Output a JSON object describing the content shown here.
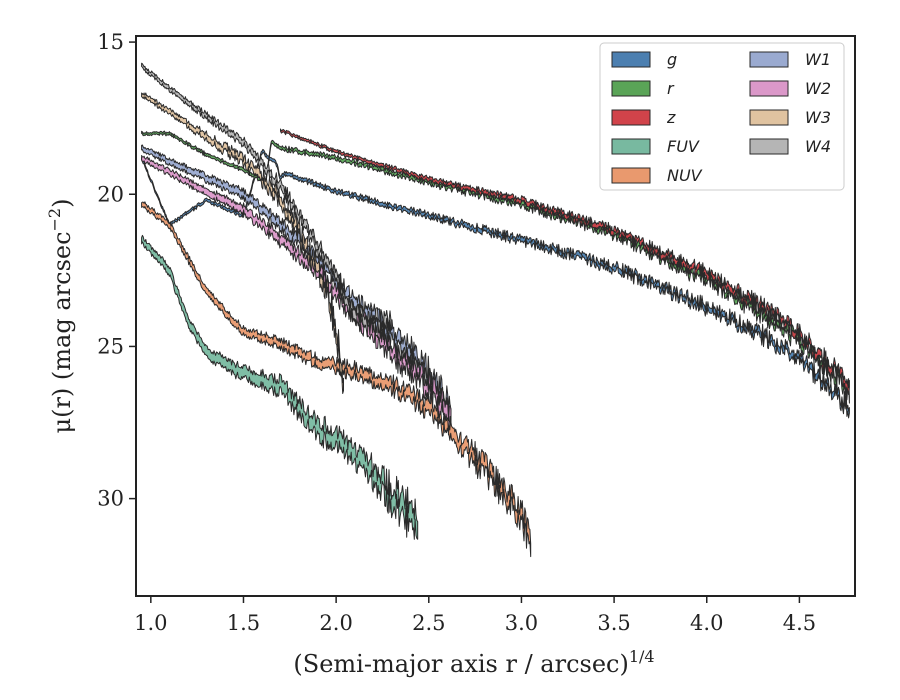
{
  "chart_data": {
    "type": "area",
    "title": "",
    "xlabel": "(Semi-major axis r / arcsec)",
    "xlabel_exponent": "1/4",
    "ylabel": "μ(r) (mag arcsec",
    "ylabel_exponent": "−2",
    "ylabel_close": ")",
    "xlim": [
      0.92,
      4.8
    ],
    "ylim": [
      33.2,
      14.8
    ],
    "y_inverted": true,
    "xticks": [
      1.0,
      1.5,
      2.0,
      2.5,
      3.0,
      3.5,
      4.0,
      4.5
    ],
    "xtick_labels": [
      "1.0",
      "1.5",
      "2.0",
      "2.5",
      "3.0",
      "3.5",
      "4.0",
      "4.5"
    ],
    "yticks": [
      15,
      20,
      25,
      30
    ],
    "ytick_labels": [
      "15",
      "20",
      "25",
      "30"
    ],
    "grid": false,
    "legend": {
      "placement": "top-right",
      "columns": 2
    },
    "series": [
      {
        "name": "g",
        "color": "#4c7fb0",
        "width": 0.12,
        "noise": 0.35,
        "points": [
          [
            0.95,
            18.8
          ],
          [
            1.1,
            21.0
          ],
          [
            1.3,
            20.2
          ],
          [
            1.5,
            20.7
          ],
          [
            1.6,
            18.6
          ],
          [
            1.68,
            19.0
          ],
          [
            1.7,
            19.5
          ],
          [
            1.72,
            19.3
          ],
          [
            2.0,
            19.9
          ],
          [
            2.5,
            20.7
          ],
          [
            3.0,
            21.5
          ],
          [
            3.5,
            22.4
          ],
          [
            4.0,
            23.7
          ],
          [
            4.3,
            24.6
          ],
          [
            4.5,
            25.4
          ],
          [
            4.77,
            27.0
          ]
        ]
      },
      {
        "name": "r",
        "color": "#5aa457",
        "width": 0.12,
        "noise": 0.35,
        "points": [
          [
            0.95,
            18.0
          ],
          [
            1.1,
            18.0
          ],
          [
            1.3,
            18.7
          ],
          [
            1.5,
            19.2
          ],
          [
            1.62,
            19.6
          ],
          [
            1.65,
            18.3
          ],
          [
            1.72,
            18.5
          ],
          [
            2.0,
            18.8
          ],
          [
            2.5,
            19.6
          ],
          [
            3.0,
            20.3
          ],
          [
            3.5,
            21.3
          ],
          [
            4.0,
            22.8
          ],
          [
            4.3,
            23.9
          ],
          [
            4.5,
            24.8
          ],
          [
            4.77,
            26.5
          ]
        ]
      },
      {
        "name": "z",
        "color": "#d1434a",
        "width": 0.12,
        "noise": 0.35,
        "points": [
          [
            1.7,
            17.9
          ],
          [
            2.0,
            18.6
          ],
          [
            2.5,
            19.5
          ],
          [
            3.0,
            20.2
          ],
          [
            3.5,
            21.2
          ],
          [
            4.0,
            22.6
          ],
          [
            4.3,
            23.7
          ],
          [
            4.5,
            24.6
          ],
          [
            4.77,
            26.3
          ]
        ]
      },
      {
        "name": "FUV",
        "color": "#78b9a0",
        "width": 0.35,
        "noise": 0.6,
        "points": [
          [
            0.95,
            21.5
          ],
          [
            1.1,
            22.5
          ],
          [
            1.2,
            24.2
          ],
          [
            1.3,
            25.2
          ],
          [
            1.5,
            25.9
          ],
          [
            1.7,
            26.3
          ],
          [
            1.85,
            27.4
          ],
          [
            2.0,
            28.1
          ],
          [
            2.2,
            29.2
          ],
          [
            2.35,
            30.2
          ],
          [
            2.44,
            30.8
          ]
        ]
      },
      {
        "name": "NUV",
        "color": "#e9996e",
        "width": 0.25,
        "noise": 0.5,
        "points": [
          [
            0.95,
            20.3
          ],
          [
            1.1,
            21.0
          ],
          [
            1.3,
            23.2
          ],
          [
            1.5,
            24.5
          ],
          [
            1.7,
            24.9
          ],
          [
            1.9,
            25.5
          ],
          [
            2.1,
            25.8
          ],
          [
            2.3,
            26.3
          ],
          [
            2.5,
            27.0
          ],
          [
            2.7,
            28.3
          ],
          [
            2.85,
            29.4
          ],
          [
            3.0,
            30.5
          ],
          [
            3.05,
            31.5
          ]
        ]
      },
      {
        "name": "W1",
        "color": "#9aaad0",
        "width": 0.25,
        "noise": 0.5,
        "points": [
          [
            0.95,
            18.5
          ],
          [
            1.2,
            19.2
          ],
          [
            1.5,
            20.0
          ],
          [
            1.7,
            21.0
          ],
          [
            1.9,
            22.1
          ],
          [
            2.1,
            23.5
          ],
          [
            2.3,
            24.6
          ],
          [
            2.45,
            25.5
          ],
          [
            2.62,
            27.1
          ]
        ]
      },
      {
        "name": "W2",
        "color": "#db98c9",
        "width": 0.25,
        "noise": 0.5,
        "points": [
          [
            0.95,
            18.8
          ],
          [
            1.2,
            19.6
          ],
          [
            1.5,
            20.5
          ],
          [
            1.7,
            21.5
          ],
          [
            1.9,
            22.5
          ],
          [
            2.1,
            24.0
          ],
          [
            2.3,
            25.1
          ],
          [
            2.5,
            26.3
          ],
          [
            2.62,
            27.4
          ]
        ]
      },
      {
        "name": "W3",
        "color": "#e0c3a0",
        "width": 0.2,
        "noise": 0.5,
        "points": [
          [
            0.95,
            16.7
          ],
          [
            1.2,
            17.7
          ],
          [
            1.5,
            18.9
          ],
          [
            1.7,
            20.1
          ],
          [
            1.8,
            21.3
          ],
          [
            1.95,
            23.0
          ],
          [
            2.0,
            24.4
          ],
          [
            2.04,
            26.2
          ]
        ]
      },
      {
        "name": "W4",
        "color": "#b5b5b5",
        "width": 0.18,
        "noise": 0.45,
        "points": [
          [
            0.95,
            15.8
          ],
          [
            1.2,
            17.0
          ],
          [
            1.5,
            18.3
          ],
          [
            1.7,
            19.7
          ],
          [
            1.85,
            21.2
          ],
          [
            2.0,
            22.7
          ],
          [
            2.1,
            24.0
          ],
          [
            2.3,
            24.4
          ]
        ]
      }
    ]
  }
}
